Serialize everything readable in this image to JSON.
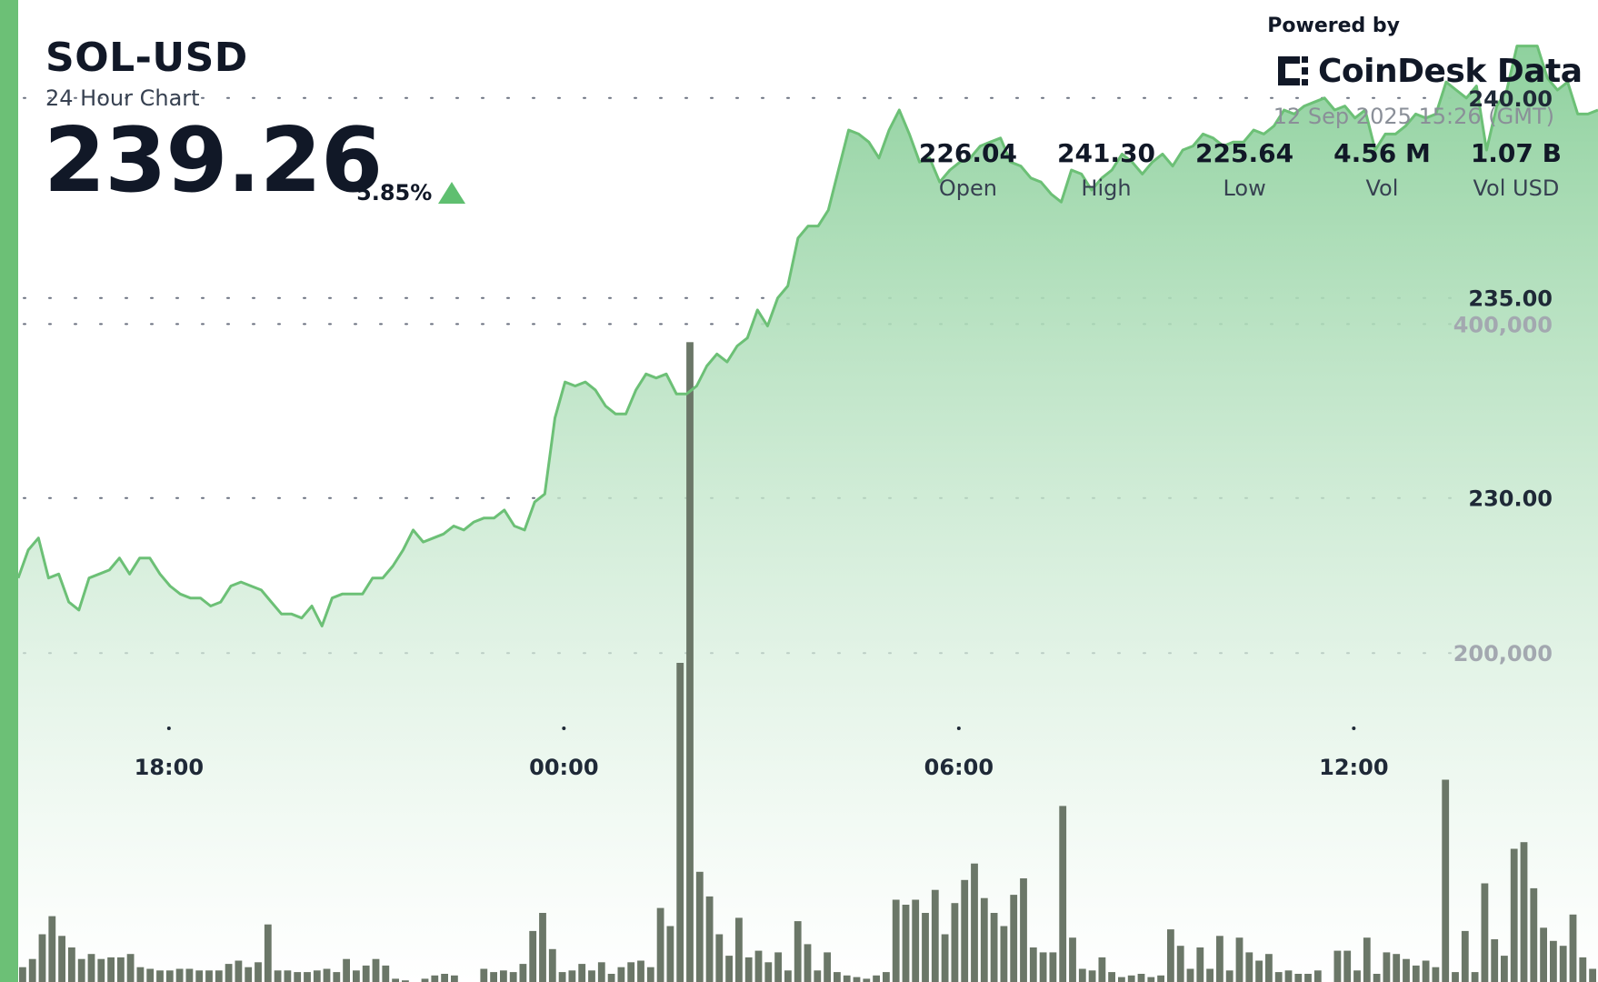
{
  "header": {
    "symbol": "SOL-USD",
    "subtitle": "24 Hour Chart",
    "price": "239.26",
    "change": "5.85%",
    "change_direction": "up"
  },
  "branding": {
    "powered_by": "Powered by",
    "name": "CoinDesk Data",
    "timestamp": "12 Sep 2025 15:26 (GMT)"
  },
  "stats": [
    {
      "value": "226.04",
      "label": "Open"
    },
    {
      "value": "241.30",
      "label": "High"
    },
    {
      "value": "225.64",
      "label": "Low"
    },
    {
      "value": "4.56 M",
      "label": "Vol"
    },
    {
      "value": "1.07 B",
      "label": "Vol USD"
    }
  ],
  "colors": {
    "accent": "#6cc076",
    "line": "#6cc076",
    "area_top": "#8fd19e",
    "volume_bar": "#6b7768"
  },
  "chart_data": {
    "type": "line",
    "price_axis": {
      "ticks": [
        230,
        235,
        240
      ],
      "tick_labels": [
        "230.00",
        "235.00",
        "240.00"
      ],
      "ylim": [
        217.9,
        242.45
      ]
    },
    "volume_axis": {
      "ticks": [
        200000,
        400000
      ],
      "tick_labels": [
        "200,000",
        "400,000"
      ],
      "ylim": [
        0,
        597000
      ]
    },
    "x_ticks": [
      {
        "label": "18:00",
        "t": 2.29
      },
      {
        "label": "00:00",
        "t": 8.29
      },
      {
        "label": "06:00",
        "t": 14.29
      },
      {
        "label": "12:00",
        "t": 20.29
      }
    ],
    "xlim": [
      0,
      24
    ],
    "price_series": [
      228.0,
      228.7,
      229.0,
      228.0,
      228.1,
      227.4,
      227.2,
      228.0,
      228.1,
      228.2,
      228.5,
      228.1,
      228.5,
      228.5,
      228.1,
      227.8,
      227.6,
      227.5,
      227.5,
      227.3,
      227.4,
      227.8,
      227.9,
      227.8,
      227.7,
      227.4,
      227.1,
      227.1,
      227.0,
      227.3,
      226.8,
      227.5,
      227.6,
      227.6,
      227.6,
      228.0,
      228.0,
      228.3,
      228.7,
      229.2,
      228.9,
      229.0,
      229.1,
      229.3,
      229.2,
      229.4,
      229.5,
      229.5,
      229.7,
      229.3,
      229.2,
      229.9,
      230.1,
      232.0,
      232.9,
      232.8,
      232.9,
      232.7,
      232.3,
      232.1,
      232.1,
      232.7,
      233.1,
      233.0,
      233.1,
      232.6,
      232.6,
      232.8,
      233.3,
      233.6,
      233.4,
      233.8,
      234.0,
      234.7,
      234.3,
      235.0,
      235.3,
      236.5,
      236.8,
      236.8,
      237.2,
      238.2,
      239.2,
      239.1,
      238.9,
      238.5,
      239.2,
      239.7,
      239.1,
      238.4,
      238.5,
      237.9,
      238.2,
      238.4,
      238.5,
      238.8,
      238.9,
      239.0,
      238.4,
      238.3,
      238.0,
      237.9,
      237.6,
      237.4,
      238.2,
      238.1,
      237.7,
      238.0,
      238.2,
      238.6,
      238.4,
      238.1,
      238.4,
      238.6,
      238.3,
      238.7,
      238.8,
      239.1,
      239.0,
      238.8,
      238.9,
      238.9,
      239.2,
      239.1,
      239.3,
      239.7,
      239.6,
      239.8,
      239.9,
      240.0,
      239.7,
      239.8,
      239.5,
      239.7,
      238.7,
      239.1,
      239.1,
      239.3,
      239.6,
      239.5,
      239.6,
      240.4,
      240.2,
      240.0,
      240.3,
      238.7,
      239.8,
      240.2,
      241.3,
      241.3,
      241.3,
      240.5,
      240.2,
      240.4,
      239.6,
      239.6,
      239.7
    ],
    "volume_series": [
      9000,
      14000,
      29000,
      40000,
      28000,
      21000,
      14000,
      17000,
      14000,
      15000,
      15000,
      17000,
      9000,
      8000,
      7000,
      7000,
      8000,
      8000,
      7000,
      7000,
      7000,
      11000,
      13000,
      9000,
      12000,
      35000,
      7000,
      7000,
      6000,
      6000,
      7000,
      8000,
      6000,
      14000,
      7000,
      10000,
      14000,
      10000,
      2000,
      1000,
      0,
      2000,
      4000,
      5000,
      4000,
      0,
      0,
      8000,
      6000,
      7000,
      6000,
      11000,
      31000,
      42000,
      20000,
      6000,
      7000,
      11000,
      7000,
      12000,
      5000,
      9000,
      12000,
      13000,
      9000,
      45000,
      34000,
      194000,
      389000,
      67000,
      52000,
      29000,
      16000,
      39000,
      15000,
      19000,
      12000,
      18000,
      7000,
      37000,
      23000,
      7000,
      18000,
      6000,
      4000,
      3000,
      2000,
      4000,
      6000,
      50000,
      47000,
      50000,
      42000,
      56000,
      29000,
      48000,
      62000,
      72000,
      51000,
      42000,
      34000,
      53000,
      63000,
      21000,
      18000,
      18000,
      107000,
      27000,
      8000,
      7000,
      15000,
      6000,
      3000,
      4000,
      5000,
      3000,
      4000,
      32000,
      22000,
      8000,
      21000,
      8000,
      28000,
      7000,
      27000,
      18000,
      13000,
      17000,
      6000,
      7000,
      5000,
      5000,
      7000,
      0,
      19000,
      19000,
      7000,
      27000,
      5000,
      18000,
      17000,
      14000,
      10000,
      13000,
      9000,
      123000,
      6000,
      31000,
      6000,
      60000,
      26000,
      16000,
      81000,
      85000,
      57000,
      33000,
      25000,
      22000,
      41000,
      15000,
      8000
    ]
  }
}
